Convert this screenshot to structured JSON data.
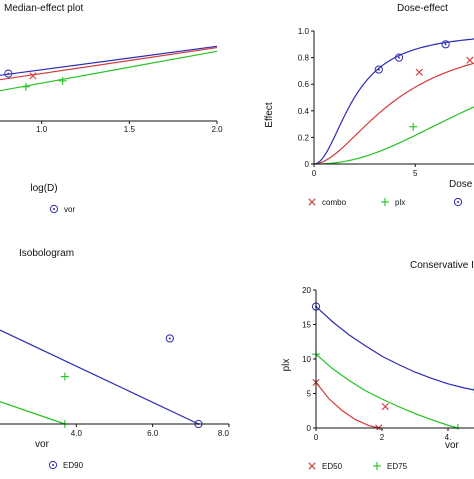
{
  "colors": {
    "red": "#d43a3a",
    "green": "#22c422",
    "blue": "#2b2bb5",
    "axis": "#111111"
  },
  "chart_data": [
    {
      "type": "line",
      "title": "Median-effect plot",
      "xlabel": "log(D)",
      "ylabel": "",
      "xlim": [
        0.5,
        2.0
      ],
      "ylim": [
        -1.3,
        1.6
      ],
      "xticks": [
        "1.0",
        "1.5",
        "2.0"
      ],
      "yticks": [],
      "series": [
        {
          "name": "",
          "color_key": "red",
          "marker": "x",
          "line": {
            "x": [
              0.5,
              2.0
            ],
            "y": [
              -0.2,
              1.04
            ]
          },
          "points": {
            "x": [
              0.55,
              0.72,
              0.95
            ],
            "y": [
              -0.12,
              -0.01,
              0.14
            ]
          }
        },
        {
          "name": "",
          "color_key": "green",
          "marker": "+",
          "line": {
            "x": [
              0.5,
              2.0
            ],
            "y": [
              -0.6,
              0.92
            ]
          },
          "points": {
            "x": [
              0.55,
              0.72,
              0.91,
              1.12
            ],
            "y": [
              -0.56,
              -0.35,
              -0.21,
              -0.02
            ]
          }
        },
        {
          "name": "vor",
          "color_key": "blue",
          "marker": "o",
          "line": {
            "x": [
              0.5,
              2.0
            ],
            "y": [
              -0.04,
              1.08
            ]
          },
          "points": {
            "x": [
              0.72,
              0.81
            ],
            "y": [
              0.16,
              0.21
            ]
          }
        }
      ],
      "legend": [
        {
          "label": "vor",
          "color_key": "blue",
          "marker": "o"
        }
      ],
      "legend_position": "bottom"
    },
    {
      "type": "line",
      "title": "Dose-effect",
      "xlabel": "Dose",
      "ylabel": "Effect",
      "xlim": [
        0,
        8.2
      ],
      "ylim": [
        0,
        1.0
      ],
      "xticks": [
        "0",
        "5"
      ],
      "yticks": [
        "0",
        "0.2",
        "0.4",
        "0.6",
        "0.8",
        "1.0"
      ],
      "series": [
        {
          "name": "combo",
          "color_key": "red",
          "marker": "x",
          "dm": 4.2,
          "m": 1.8,
          "points": {
            "x": [
              5.2,
              7.7
            ],
            "y": [
              0.69,
              0.78
            ]
          }
        },
        {
          "name": "plx",
          "color_key": "green",
          "marker": "+",
          "dm": 9.0,
          "m": 2.2,
          "points": {
            "x": [
              4.9
            ],
            "y": [
              0.28
            ]
          }
        },
        {
          "name": "",
          "color_key": "blue",
          "marker": "o",
          "dm": 2.0,
          "m": 2.0,
          "points": {
            "x": [
              3.2,
              4.2,
              6.5
            ],
            "y": [
              0.71,
              0.8,
              0.9
            ]
          }
        }
      ],
      "legend": [
        {
          "label": "combo",
          "color_key": "red",
          "marker": "x"
        },
        {
          "label": "plx",
          "color_key": "green",
          "marker": "+"
        },
        {
          "label": "",
          "color_key": "blue",
          "marker": "o"
        }
      ],
      "legend_position": "bottom"
    },
    {
      "type": "line",
      "title": "Isobologram",
      "xlabel": "vor",
      "ylabel": "",
      "xlim": [
        2.0,
        8.0
      ],
      "ylim": [
        0,
        10
      ],
      "xticks": [
        "4.0",
        "6.0",
        "8.0"
      ],
      "yticks": [],
      "series": [
        {
          "name": "ED90",
          "color_key": "blue",
          "marker": "o",
          "line": {
            "x": [
              2.0,
              7.2
            ],
            "y": [
              10.1,
              0
            ]
          },
          "points": {
            "x": [
              6.45,
              7.2
            ],
            "y": [
              9.2,
              0
            ]
          }
        },
        {
          "name": "",
          "color_key": "green",
          "marker": "+",
          "line": {
            "x": [
              2.0,
              3.7
            ],
            "y": [
              2.4,
              0
            ]
          },
          "points": {
            "x": [
              3.7,
              3.7
            ],
            "y": [
              5.1,
              0
            ]
          }
        }
      ],
      "legend": [
        {
          "label": "ED90",
          "color_key": "blue",
          "marker": "o"
        }
      ],
      "legend_position": "bottom"
    },
    {
      "type": "line",
      "title": "Conservative Iso",
      "xlabel": "vor",
      "ylabel": "plx",
      "xlim": [
        0,
        5.0
      ],
      "ylim": [
        0,
        20
      ],
      "xticks": [
        "0",
        "2",
        "4."
      ],
      "yticks": [
        "0",
        "5",
        "10",
        "15",
        "20"
      ],
      "series": [
        {
          "name": "ED50",
          "color_key": "red",
          "marker": "x",
          "curve": {
            "x": [
              0,
              0.4,
              0.8,
              1.2,
              1.6,
              1.9
            ],
            "y": [
              6.6,
              4.2,
              2.5,
              1.2,
              0.35,
              0
            ]
          },
          "points": {
            "x": [
              0,
              2.1,
              1.9
            ],
            "y": [
              6.6,
              3.1,
              0
            ]
          }
        },
        {
          "name": "ED75",
          "color_key": "green",
          "marker": "+",
          "curve": {
            "x": [
              0,
              0.5,
              1.0,
              1.5,
              2.0,
              2.5,
              3.0,
              3.5,
              4.0,
              4.3
            ],
            "y": [
              10.7,
              8.6,
              6.9,
              5.4,
              4.2,
              3.1,
              2.1,
              1.2,
              0.4,
              0
            ]
          },
          "points": {
            "x": [
              0,
              4.3,
              4.8
            ],
            "y": [
              10.7,
              0,
              5.6
            ]
          }
        },
        {
          "name": "",
          "color_key": "blue",
          "marker": "o",
          "curve": {
            "x": [
              0,
              0.5,
              1.0,
              1.5,
              2.0,
              2.5,
              3.0,
              3.5,
              4.0,
              4.5,
              5.0
            ],
            "y": [
              17.6,
              15.4,
              13.5,
              11.9,
              10.4,
              9.2,
              8.1,
              7.2,
              6.4,
              5.8,
              5.3
            ]
          },
          "points": {
            "x": [
              0
            ],
            "y": [
              17.6
            ]
          }
        }
      ],
      "legend": [
        {
          "label": "ED50",
          "color_key": "red",
          "marker": "x"
        },
        {
          "label": "ED75",
          "color_key": "green",
          "marker": "+"
        }
      ],
      "legend_position": "bottom"
    }
  ]
}
